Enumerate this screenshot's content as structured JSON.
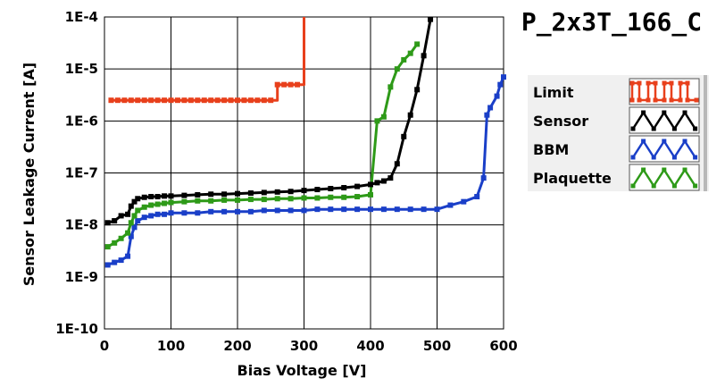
{
  "chart_data": {
    "type": "line",
    "title": "P_2x3T_166_C",
    "xlabel": "Bias Voltage [V]",
    "ylabel": "Sensor Leakage Current [A]",
    "xlim": [
      0,
      600
    ],
    "ylim": [
      1e-10,
      0.0001
    ],
    "yscale": "log",
    "grid": true,
    "legend_position": "right",
    "x_ticks": [
      "0",
      "100",
      "200",
      "300",
      "400",
      "500",
      "600"
    ],
    "y_ticks": [
      "1E-10",
      "1E-9",
      "1E-8",
      "1E-7",
      "1E-6",
      "1E-5",
      "1E-4"
    ],
    "series": [
      {
        "name": "Limit",
        "color": "#e8401c",
        "step": true,
        "x": [
          10,
          20,
          30,
          40,
          50,
          60,
          70,
          80,
          90,
          100,
          110,
          120,
          130,
          140,
          150,
          160,
          170,
          180,
          190,
          200,
          210,
          220,
          230,
          240,
          250,
          260,
          270,
          280,
          290,
          300
        ],
        "y": [
          2.5e-06,
          2.5e-06,
          2.5e-06,
          2.5e-06,
          2.5e-06,
          2.5e-06,
          2.5e-06,
          2.5e-06,
          2.5e-06,
          2.5e-06,
          2.5e-06,
          2.5e-06,
          2.5e-06,
          2.5e-06,
          2.5e-06,
          2.5e-06,
          2.5e-06,
          2.5e-06,
          2.5e-06,
          2.5e-06,
          2.5e-06,
          2.5e-06,
          2.5e-06,
          2.5e-06,
          2.5e-06,
          5e-06,
          5e-06,
          5e-06,
          5e-06,
          0.0001
        ],
        "marker_count": 29
      },
      {
        "name": "Sensor",
        "color": "#000000",
        "x": [
          5,
          15,
          25,
          35,
          40,
          45,
          50,
          60,
          70,
          80,
          90,
          100,
          120,
          140,
          160,
          180,
          200,
          220,
          240,
          260,
          280,
          300,
          320,
          340,
          360,
          380,
          400,
          410,
          420,
          430,
          440,
          450,
          460,
          470,
          480,
          490
        ],
        "y": [
          1.1e-08,
          1.2e-08,
          1.5e-08,
          1.6e-08,
          2.3e-08,
          2.8e-08,
          3.2e-08,
          3.4e-08,
          3.5e-08,
          3.5e-08,
          3.6e-08,
          3.6e-08,
          3.7e-08,
          3.8e-08,
          3.9e-08,
          3.9e-08,
          4e-08,
          4.1e-08,
          4.2e-08,
          4.3e-08,
          4.4e-08,
          4.6e-08,
          4.8e-08,
          5e-08,
          5.2e-08,
          5.5e-08,
          6e-08,
          6.5e-08,
          7e-08,
          8e-08,
          1.5e-07,
          5e-07,
          1.3e-06,
          4e-06,
          1.8e-05,
          9e-05
        ]
      },
      {
        "name": "BBM",
        "color": "#1a3fc8",
        "x": [
          5,
          15,
          25,
          35,
          40,
          45,
          50,
          60,
          70,
          80,
          90,
          100,
          120,
          140,
          160,
          180,
          200,
          220,
          240,
          260,
          280,
          300,
          320,
          340,
          360,
          380,
          400,
          420,
          440,
          460,
          480,
          500,
          520,
          540,
          560,
          570,
          575,
          580,
          590,
          595,
          600
        ],
        "y": [
          1.7e-09,
          1.9e-09,
          2.1e-09,
          2.5e-09,
          6e-09,
          9e-09,
          1.2e-08,
          1.4e-08,
          1.5e-08,
          1.6e-08,
          1.6e-08,
          1.7e-08,
          1.7e-08,
          1.7e-08,
          1.8e-08,
          1.8e-08,
          1.8e-08,
          1.8e-08,
          1.9e-08,
          1.9e-08,
          1.9e-08,
          1.9e-08,
          2e-08,
          2e-08,
          2e-08,
          2e-08,
          2e-08,
          2e-08,
          2e-08,
          2e-08,
          2e-08,
          2e-08,
          2.4e-08,
          2.8e-08,
          3.5e-08,
          8e-08,
          1.3e-06,
          1.8e-06,
          3e-06,
          5e-06,
          7e-06
        ]
      },
      {
        "name": "Plaquette",
        "color": "#2e9a18",
        "x": [
          5,
          15,
          25,
          35,
          40,
          45,
          50,
          60,
          70,
          80,
          90,
          100,
          120,
          140,
          160,
          180,
          200,
          220,
          240,
          260,
          280,
          300,
          320,
          340,
          360,
          380,
          400,
          410,
          420,
          430,
          440,
          450,
          460,
          470
        ],
        "y": [
          3.8e-09,
          4.5e-09,
          5.5e-09,
          7e-09,
          1.1e-08,
          1.5e-08,
          1.9e-08,
          2.2e-08,
          2.4e-08,
          2.5e-08,
          2.6e-08,
          2.7e-08,
          2.8e-08,
          2.9e-08,
          2.9e-08,
          3e-08,
          3e-08,
          3.1e-08,
          3.1e-08,
          3.2e-08,
          3.2e-08,
          3.3e-08,
          3.3e-08,
          3.4e-08,
          3.4e-08,
          3.5e-08,
          3.8e-08,
          1e-06,
          1.2e-06,
          4.5e-06,
          1e-05,
          1.5e-05,
          2e-05,
          3e-05
        ]
      }
    ]
  }
}
